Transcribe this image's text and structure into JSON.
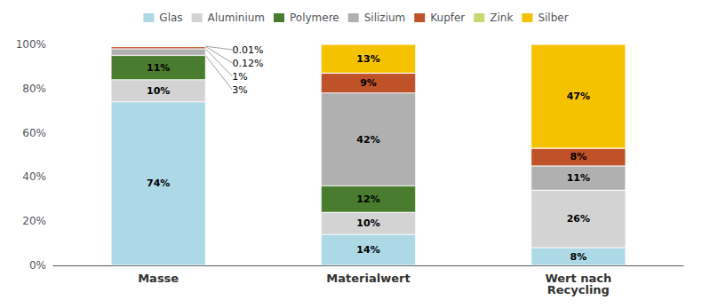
{
  "chart_data": {
    "type": "bar",
    "stacked": true,
    "categories": [
      "Masse",
      "Materialwert",
      "Wert nach\nRecycling"
    ],
    "series": [
      {
        "name": "Glas",
        "color": "#add8e6",
        "values": [
          74,
          14,
          8
        ],
        "value_labels": [
          "74%",
          "14%",
          "8%"
        ]
      },
      {
        "name": "Aluminium",
        "color": "#d3d3d3",
        "values": [
          10,
          10,
          26
        ],
        "value_labels": [
          "10%",
          "10%",
          "26%"
        ]
      },
      {
        "name": "Polymere",
        "color": "#4a7c2f",
        "values": [
          11,
          12,
          0
        ],
        "value_labels": [
          "11%",
          "12%",
          null
        ]
      },
      {
        "name": "Silizium",
        "color": "#b0b0b0",
        "values": [
          3,
          42,
          11
        ],
        "value_labels": [
          "3%",
          "42%",
          "11%"
        ]
      },
      {
        "name": "Kupfer",
        "color": "#c0522a",
        "values": [
          1,
          9,
          8
        ],
        "value_labels": [
          "1%",
          "9%",
          "8%"
        ]
      },
      {
        "name": "Zink",
        "color": "#c8d96f",
        "values": [
          0.12,
          0,
          0
        ],
        "value_labels": [
          "0.12%",
          null,
          null
        ]
      },
      {
        "name": "Silber",
        "color": "#f5c200",
        "values": [
          0.01,
          13,
          47
        ],
        "value_labels": [
          "0.01%",
          "13%",
          "47%"
        ]
      }
    ],
    "ylim": [
      0,
      100
    ],
    "yticks": [
      {
        "value": 0,
        "label": "0%"
      },
      {
        "value": 20,
        "label": "20%"
      },
      {
        "value": 40,
        "label": "40%"
      },
      {
        "value": 60,
        "label": "60%"
      },
      {
        "value": 80,
        "label": "80%"
      },
      {
        "value": 100,
        "label": "100%"
      }
    ],
    "grid": false,
    "legend": "top",
    "data_labels": true
  }
}
